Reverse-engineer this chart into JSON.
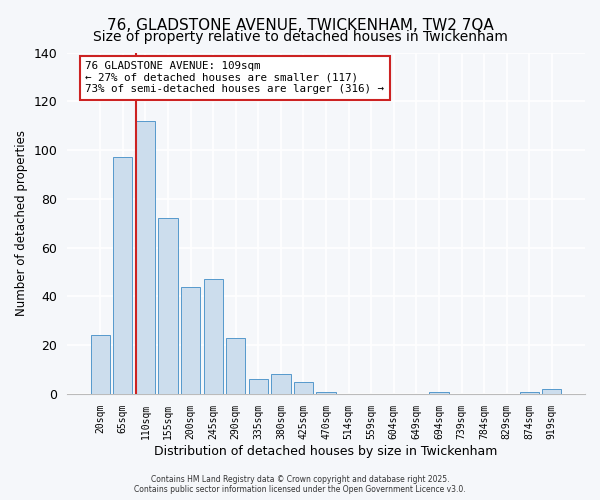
{
  "title": "76, GLADSTONE AVENUE, TWICKENHAM, TW2 7QA",
  "subtitle": "Size of property relative to detached houses in Twickenham",
  "xlabel": "Distribution of detached houses by size in Twickenham",
  "ylabel": "Number of detached properties",
  "categories": [
    "20sqm",
    "65sqm",
    "110sqm",
    "155sqm",
    "200sqm",
    "245sqm",
    "290sqm",
    "335sqm",
    "380sqm",
    "425sqm",
    "470sqm",
    "514sqm",
    "559sqm",
    "604sqm",
    "649sqm",
    "694sqm",
    "739sqm",
    "784sqm",
    "829sqm",
    "874sqm",
    "919sqm"
  ],
  "values": [
    24,
    97,
    112,
    72,
    44,
    47,
    23,
    6,
    8,
    5,
    1,
    0,
    0,
    0,
    0,
    1,
    0,
    0,
    0,
    1,
    2
  ],
  "bar_color": "#ccdded",
  "bar_edge_color": "#5599cc",
  "vline_color": "#cc2222",
  "ylim": [
    0,
    140
  ],
  "yticks": [
    0,
    20,
    40,
    60,
    80,
    100,
    120,
    140
  ],
  "annotation_text": "76 GLADSTONE AVENUE: 109sqm\n← 27% of detached houses are smaller (117)\n73% of semi-detached houses are larger (316) →",
  "annotation_box_color": "#ffffff",
  "annotation_box_edge": "#cc2222",
  "footer1": "Contains HM Land Registry data © Crown copyright and database right 2025.",
  "footer2": "Contains public sector information licensed under the Open Government Licence v3.0.",
  "background_color": "#f5f7fa",
  "grid_color": "#ffffff",
  "title_fontsize": 11,
  "subtitle_fontsize": 10
}
